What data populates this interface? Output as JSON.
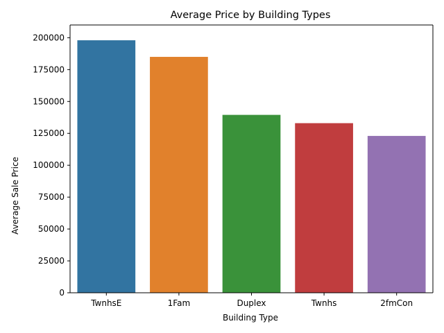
{
  "chart_data": {
    "type": "bar",
    "title": "Average Price by Building Types",
    "xlabel": "Building Type",
    "ylabel": "Average Sale Price",
    "categories": [
      "TwnhsE",
      "1Fam",
      "Duplex",
      "Twnhs",
      "2fmCon"
    ],
    "values": [
      198000,
      185000,
      139500,
      133000,
      123000
    ],
    "colors": [
      "#3274a1",
      "#e1812c",
      "#3a923a",
      "#c03d3e",
      "#9372b2"
    ],
    "ylim": [
      0,
      210000
    ],
    "yticks": [
      0,
      25000,
      50000,
      75000,
      100000,
      125000,
      150000,
      175000,
      200000
    ],
    "grid": false,
    "legend": "none"
  }
}
